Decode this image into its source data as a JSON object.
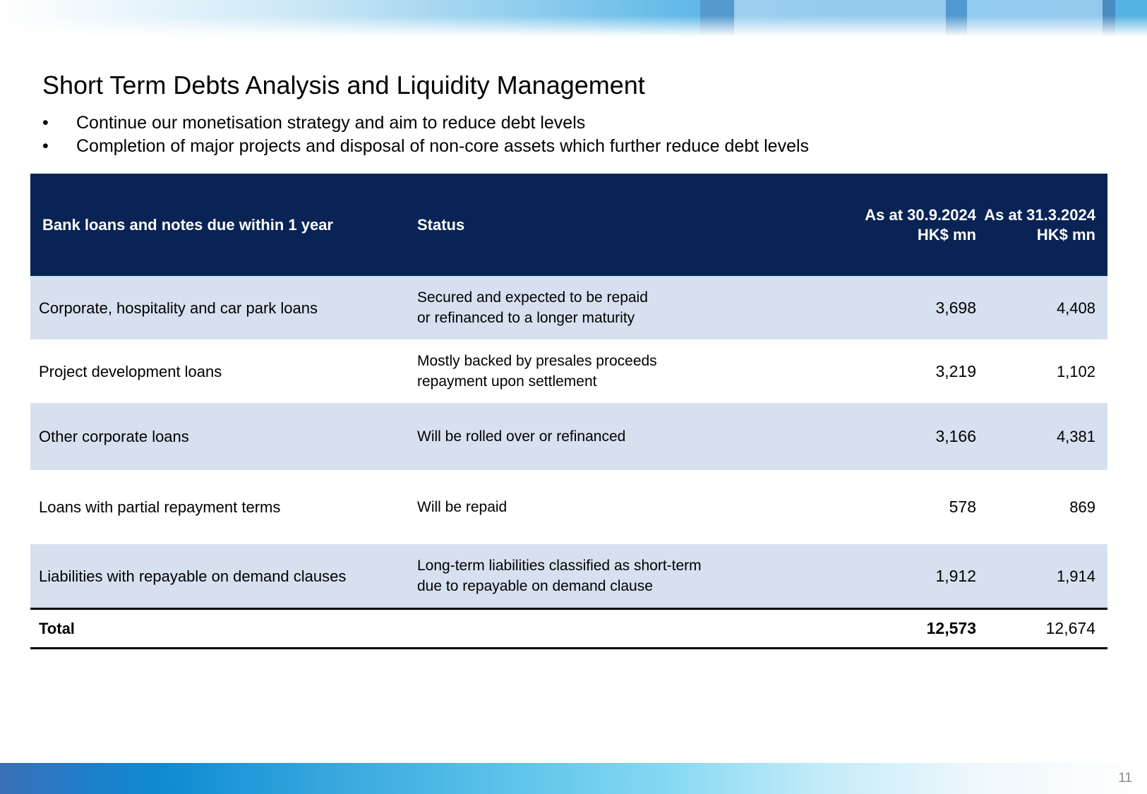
{
  "slide": {
    "title": "Short Term Debts Analysis and Liquidity Management",
    "page_number": "11",
    "bullets": [
      "Continue our monetisation strategy and aim to reduce debt levels",
      "Completion of major projects and disposal of non-core assets which further reduce debt levels"
    ],
    "bullet_symbol": "•"
  },
  "table": {
    "headers": {
      "name": "Bank loans and notes due within 1 year",
      "status": "Status",
      "col_a_line1": "As at 30.9.2024",
      "col_a_line2": "HK$ mn",
      "col_b_line1": "As at 31.3.2024",
      "col_b_line2": "HK$ mn"
    },
    "rows": [
      {
        "name": "Corporate, hospitality and car park loans",
        "status_line1": "Secured and expected to be repaid",
        "status_line2": "or refinanced to a longer maturity",
        "value_a": "3,698",
        "value_b": "4,408"
      },
      {
        "name": "Project development loans",
        "status_line1": "Mostly backed by presales proceeds",
        "status_line2": "repayment upon settlement",
        "value_a": "3,219",
        "value_b": "1,102"
      },
      {
        "name": "Other corporate loans",
        "status_line1": "Will be rolled over or refinanced",
        "status_line2": "",
        "value_a": "3,166",
        "value_b": "4,381"
      },
      {
        "name": "Loans with partial repayment terms",
        "status_line1": "Will be repaid",
        "status_line2": "",
        "value_a": "578",
        "value_b": "869"
      },
      {
        "name": "Liabilities with repayable on demand clauses",
        "status_line1": "Long-term liabilities classified as short-term",
        "status_line2": "due to repayable on demand clause",
        "value_a": "1,912",
        "value_b": "1,914"
      }
    ],
    "total": {
      "label": "Total",
      "value_a": "12,573",
      "value_b": "12,674"
    }
  },
  "colors": {
    "header_bg": "#0a2355",
    "shaded_row_bg": "#d6e0ef",
    "text": "#000000"
  }
}
